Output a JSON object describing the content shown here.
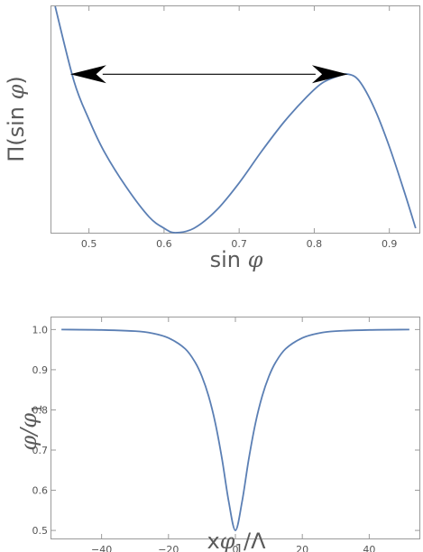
{
  "chart_data": [
    {
      "type": "line",
      "title": "",
      "xlabel": {
        "prefix": "sin ",
        "symbol": "φ"
      },
      "ylabel": {
        "prefix": "Π(sin ",
        "symbol": "φ",
        "suffix": ")"
      },
      "xlim": [
        0.45,
        0.94
      ],
      "xticks": [
        "0.5",
        "0.6",
        "0.7",
        "0.8",
        "0.9"
      ],
      "y_tick_labels_shown": false,
      "ylim": [
        0,
        1
      ],
      "grid": false,
      "series": [
        {
          "color": "#5b7fb4",
          "x": [
            0.455,
            0.48,
            0.5,
            0.52,
            0.55,
            0.58,
            0.6,
            0.615,
            0.64,
            0.67,
            0.7,
            0.73,
            0.76,
            0.79,
            0.81,
            0.83,
            0.845,
            0.86,
            0.88,
            0.9,
            0.92,
            0.935
          ],
          "y": [
            1.0,
            0.67,
            0.5,
            0.36,
            0.2,
            0.07,
            0.02,
            0.0,
            0.02,
            0.1,
            0.22,
            0.36,
            0.49,
            0.6,
            0.66,
            0.69,
            0.7,
            0.67,
            0.55,
            0.38,
            0.18,
            0.02
          ]
        }
      ],
      "annotation": {
        "type": "double-arrow",
        "from": [
          0.475,
          0.7
        ],
        "to": [
          0.845,
          0.7
        ]
      }
    },
    {
      "type": "line",
      "title": "",
      "xlabel": {
        "prefix": "x",
        "symbol": "φ",
        "sub": "1",
        "suffix": "/Λ"
      },
      "ylabel": {
        "symbol": "φ/φ",
        "sub": "1"
      },
      "xlim": [
        -55,
        55
      ],
      "ylim": [
        0.48,
        1.03
      ],
      "xticks": [
        "−40",
        "−20",
        "0",
        "20",
        "40"
      ],
      "yticks": [
        "0.5",
        "0.6",
        "0.7",
        "0.8",
        "0.9",
        "1.0"
      ],
      "grid": false,
      "series": [
        {
          "color": "#5b7fb4",
          "x": [
            -52,
            -40,
            -30,
            -25,
            -20,
            -15,
            -12,
            -10,
            -8,
            -6,
            -4,
            -2,
            0,
            2,
            4,
            6,
            8,
            10,
            12,
            15,
            20,
            25,
            30,
            40,
            52
          ],
          "y": [
            1.0,
            0.999,
            0.996,
            0.991,
            0.979,
            0.952,
            0.918,
            0.883,
            0.834,
            0.767,
            0.678,
            0.572,
            0.5,
            0.572,
            0.678,
            0.767,
            0.834,
            0.883,
            0.918,
            0.952,
            0.979,
            0.991,
            0.996,
            0.999,
            1.0
          ]
        }
      ]
    }
  ]
}
